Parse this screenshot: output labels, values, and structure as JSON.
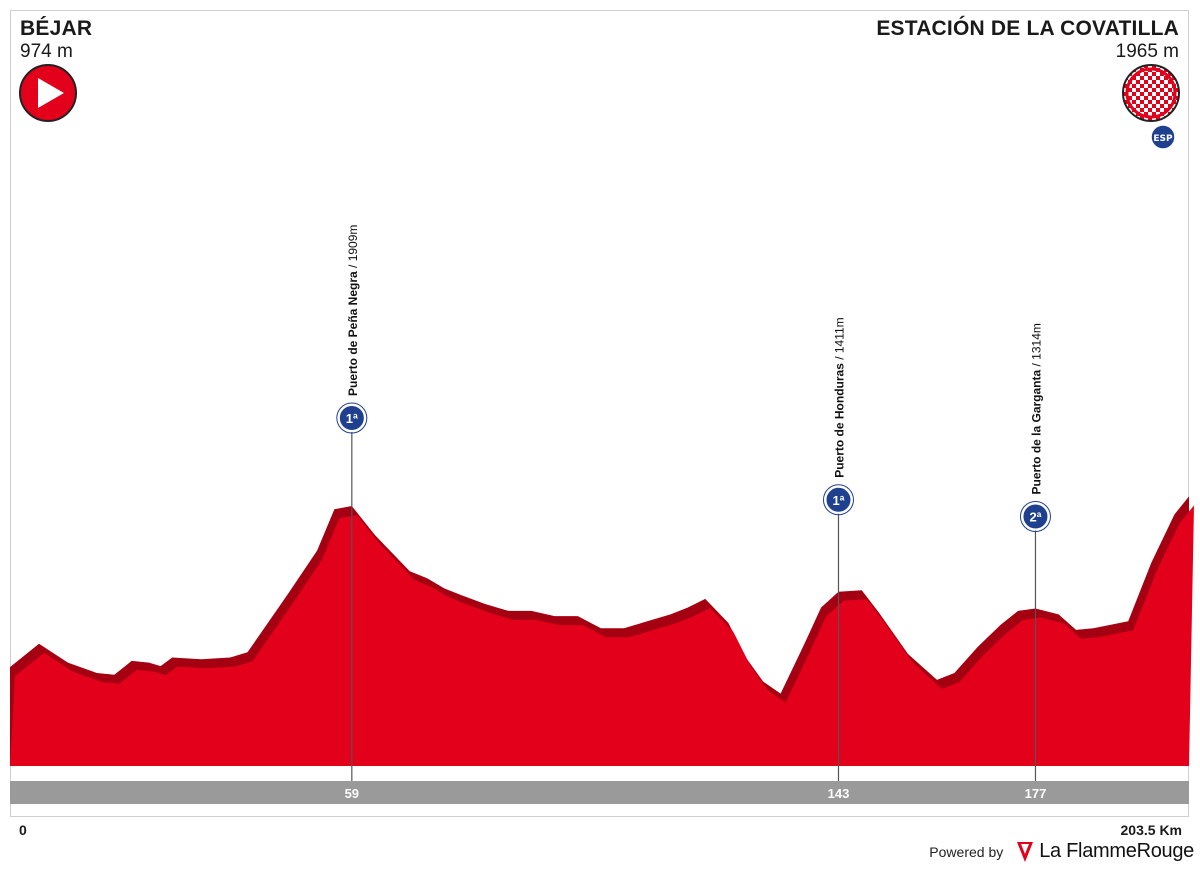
{
  "start": {
    "name": "BÉJAR",
    "altitude": "974 m",
    "icon": "start-arrow-icon"
  },
  "finish": {
    "name": "ESTACIÓN DE LA COVATILLA",
    "altitude": "1965 m",
    "icon": "finish-flag-icon",
    "extra_icon": "summit-finish-badge-icon"
  },
  "distance": {
    "start_label": "0",
    "end_label": "203.5 Km"
  },
  "footer": {
    "powered_by": "Powered by",
    "brand": "La FlammeRouge"
  },
  "colors": {
    "profile": "#e2001a",
    "profile_dark": "#a50011",
    "km_bar": "#9a9a9a",
    "climb_badge": "#1f3f8f"
  },
  "chart_data": {
    "type": "area",
    "title": "",
    "xlabel": "",
    "ylabel": "",
    "xlim": [
      0,
      203.5
    ],
    "ylim": [
      0,
      2100
    ],
    "x_unit": "km",
    "y_unit": "m",
    "elevation": [
      [
        0,
        974
      ],
      [
        5,
        1110
      ],
      [
        10,
        1000
      ],
      [
        15,
        940
      ],
      [
        18,
        930
      ],
      [
        21,
        1010
      ],
      [
        24,
        1000
      ],
      [
        26,
        980
      ],
      [
        28,
        1030
      ],
      [
        33,
        1020
      ],
      [
        38,
        1030
      ],
      [
        41,
        1060
      ],
      [
        48,
        1400
      ],
      [
        53,
        1650
      ],
      [
        56,
        1890
      ],
      [
        59,
        1909
      ],
      [
        63,
        1740
      ],
      [
        69,
        1530
      ],
      [
        72,
        1490
      ],
      [
        75,
        1430
      ],
      [
        78,
        1390
      ],
      [
        82,
        1340
      ],
      [
        86,
        1300
      ],
      [
        90,
        1300
      ],
      [
        94,
        1270
      ],
      [
        98,
        1270
      ],
      [
        102,
        1200
      ],
      [
        106,
        1200
      ],
      [
        110,
        1240
      ],
      [
        114,
        1280
      ],
      [
        117,
        1320
      ],
      [
        120,
        1370
      ],
      [
        124,
        1230
      ],
      [
        127,
        1030
      ],
      [
        130,
        890
      ],
      [
        133,
        820
      ],
      [
        137,
        1100
      ],
      [
        140,
        1320
      ],
      [
        143,
        1411
      ],
      [
        147,
        1420
      ],
      [
        150,
        1290
      ],
      [
        155,
        1050
      ],
      [
        160,
        900
      ],
      [
        163,
        940
      ],
      [
        167,
        1090
      ],
      [
        171,
        1220
      ],
      [
        174,
        1300
      ],
      [
        177,
        1314
      ],
      [
        181,
        1280
      ],
      [
        184,
        1190
      ],
      [
        187,
        1200
      ],
      [
        190,
        1220
      ],
      [
        193,
        1240
      ],
      [
        197,
        1580
      ],
      [
        201,
        1860
      ],
      [
        203.5,
        1965
      ]
    ],
    "climbs": [
      {
        "name": "Puerto de Peña Negra",
        "altitude": "1909m",
        "km": 59,
        "km_label": "59",
        "category": "1ª"
      },
      {
        "name": "Puerto de Honduras",
        "altitude": "1411m",
        "km": 143,
        "km_label": "143",
        "category": "1ª"
      },
      {
        "name": "Puerto de la Garganta",
        "altitude": "1314m",
        "km": 177,
        "km_label": "177",
        "category": "2ª"
      }
    ]
  }
}
